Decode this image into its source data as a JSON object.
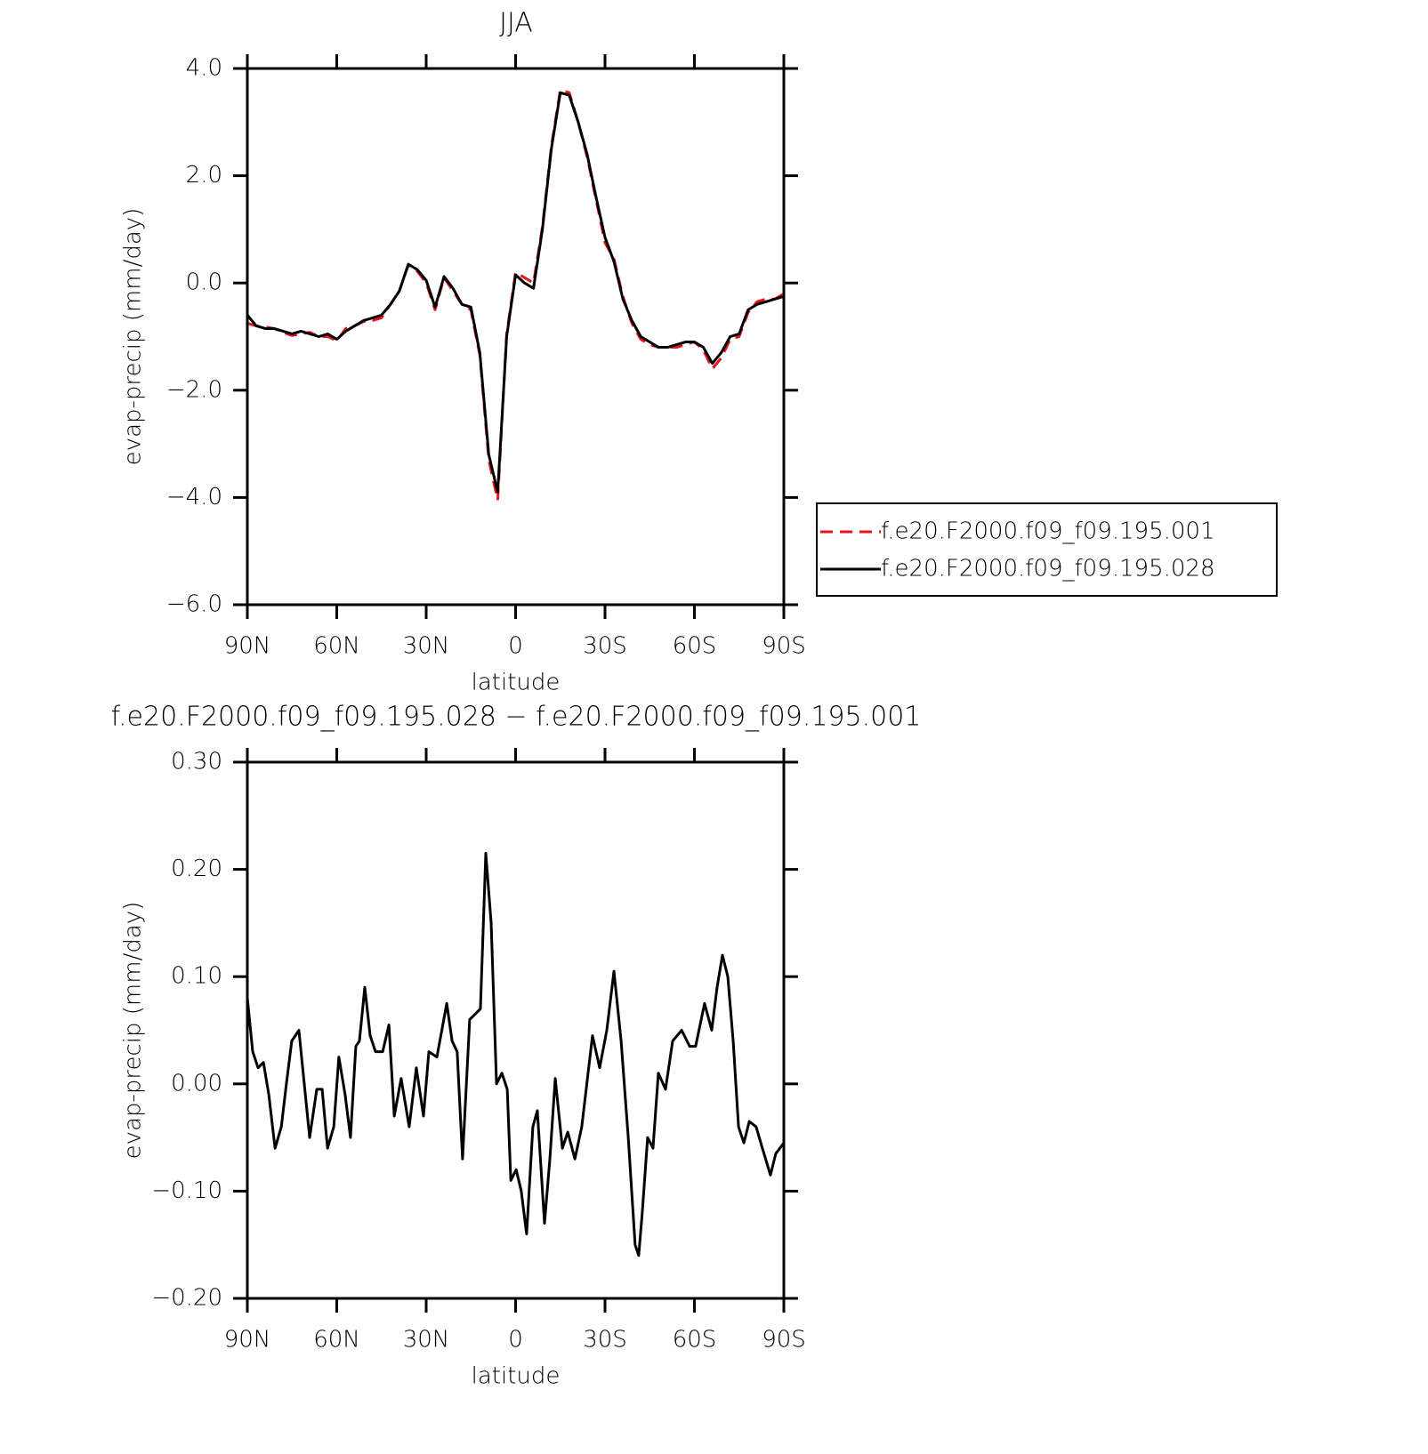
{
  "chart_data": [
    {
      "type": "line",
      "title": "JJA",
      "xlabel": "latitude",
      "ylabel": "evap-precip (mm/day)",
      "x": [
        90,
        87,
        84,
        81,
        78,
        75,
        72,
        69,
        66,
        63,
        60,
        57,
        54,
        51,
        48,
        45,
        42,
        39,
        36,
        33,
        30,
        27,
        24,
        21,
        18,
        15,
        12,
        9,
        6,
        3,
        0,
        -3,
        -6,
        -9,
        -12,
        -15,
        -18,
        -21,
        -24,
        -27,
        -30,
        -33,
        -36,
        -39,
        -42,
        -45,
        -48,
        -51,
        -54,
        -57,
        -60,
        -63,
        -66,
        -69,
        -72,
        -75,
        -78,
        -81,
        -84,
        -87,
        -90
      ],
      "series": [
        {
          "name": "f.e20.F2000.f09_f09.195.001",
          "color": "#e8141a",
          "dashed": true,
          "values": [
            -0.75,
            -0.8,
            -0.82,
            -0.85,
            -0.92,
            -0.98,
            -0.95,
            -0.92,
            -1.0,
            -1.0,
            -1.08,
            -0.85,
            -0.8,
            -0.72,
            -0.7,
            -0.65,
            -0.4,
            -0.15,
            0.33,
            0.22,
            0.0,
            -0.5,
            0.1,
            -0.15,
            -0.4,
            -0.5,
            -1.35,
            -3.3,
            -4.05,
            -0.95,
            0.2,
            0.1,
            0.0,
            1.05,
            2.55,
            3.6,
            3.55,
            3.0,
            2.35,
            1.55,
            0.75,
            0.45,
            -0.25,
            -0.75,
            -1.05,
            -1.15,
            -1.2,
            -1.2,
            -1.2,
            -1.15,
            -1.1,
            -1.25,
            -1.6,
            -1.4,
            -1.05,
            -1.0,
            -0.55,
            -0.35,
            -0.3,
            -0.3,
            -0.2
          ]
        },
        {
          "name": "f.e20.F2000.f09_f09.195.028",
          "color": "#000000",
          "dashed": false,
          "values": [
            -0.6,
            -0.8,
            -0.85,
            -0.85,
            -0.9,
            -0.95,
            -0.9,
            -0.95,
            -1.0,
            -0.95,
            -1.05,
            -0.9,
            -0.8,
            -0.7,
            -0.65,
            -0.6,
            -0.4,
            -0.15,
            0.35,
            0.25,
            0.05,
            -0.45,
            0.12,
            -0.1,
            -0.4,
            -0.45,
            -1.3,
            -3.2,
            -3.9,
            -1.0,
            0.15,
            0.0,
            -0.1,
            1.0,
            2.5,
            3.55,
            3.5,
            3.0,
            2.4,
            1.6,
            0.85,
            0.4,
            -0.3,
            -0.7,
            -1.0,
            -1.1,
            -1.2,
            -1.2,
            -1.15,
            -1.1,
            -1.1,
            -1.2,
            -1.5,
            -1.3,
            -1.0,
            -0.95,
            -0.5,
            -0.4,
            -0.35,
            -0.3,
            -0.25
          ]
        }
      ],
      "xlim": [
        90,
        -90
      ],
      "xticks": [
        {
          "value": 90,
          "label": "90N"
        },
        {
          "value": 60,
          "label": "60N"
        },
        {
          "value": 30,
          "label": "30N"
        },
        0,
        {
          "value": -30,
          "label": "30S"
        },
        {
          "value": -60,
          "label": "60S"
        },
        {
          "value": -90,
          "label": "90S"
        }
      ],
      "ylim": [
        -6,
        4
      ],
      "yticks": [
        {
          "value": -6,
          "label": "−6.0"
        },
        {
          "value": -4,
          "label": "−4.0"
        },
        {
          "value": -2,
          "label": "−2.0"
        },
        {
          "value": 0,
          "label": "0.0"
        },
        {
          "value": 2,
          "label": "2.0"
        },
        {
          "value": 4,
          "label": "4.0"
        }
      ],
      "legend": "right"
    },
    {
      "type": "line",
      "title": "f.e20.F2000.f09_f09.195.028 − f.e20.F2000.f09_f09.195.001",
      "xlabel": "latitude",
      "ylabel": "evap-precip (mm/day)",
      "x": [
        90,
        88.2,
        86.4,
        84.6,
        82.8,
        80.7,
        78.6,
        76.9,
        75.1,
        72.7,
        70.9,
        69.1,
        66.7,
        64.9,
        63.1,
        61.0,
        59.3,
        57.2,
        55.4,
        53.6,
        52.4,
        50.6,
        48.8,
        47.0,
        44.6,
        42.5,
        40.7,
        38.4,
        35.7,
        33.3,
        30.9,
        29.1,
        26.4,
        23.1,
        21.3,
        19.6,
        17.8,
        15.4,
        11.8,
        10.0,
        8.2,
        6.4,
        4.6,
        2.8,
        1.6,
        -0.2,
        -1.9,
        -3.7,
        -5.8,
        -7.3,
        -9.7,
        -11.5,
        -13.3,
        -15.7,
        -17.5,
        -19.9,
        -22.2,
        -25.8,
        -28.2,
        -30.6,
        -33.0,
        -35.4,
        -37.8,
        -40.1,
        -41.3,
        -42.5,
        -44.3,
        -46.1,
        -47.9,
        -50.3,
        -52.7,
        -55.7,
        -58.4,
        -60.4,
        -63.4,
        -65.8,
        -67.6,
        -69.4,
        -71.2,
        -73.0,
        -74.8,
        -76.6,
        -78.4,
        -80.7,
        -82.8,
        -85.5,
        -87.3,
        -90
      ],
      "series": [
        {
          "color": "#000000",
          "dashed": false,
          "values": [
            0.08,
            0.03,
            0.015,
            0.02,
            -0.01,
            -0.06,
            -0.04,
            0.0,
            0.04,
            0.05,
            0.0,
            -0.05,
            -0.005,
            -0.005,
            -0.06,
            -0.04,
            0.025,
            -0.01,
            -0.05,
            0.035,
            0.04,
            0.09,
            0.045,
            0.03,
            0.03,
            0.055,
            -0.03,
            0.005,
            -0.04,
            0.015,
            -0.03,
            0.03,
            0.025,
            0.075,
            0.04,
            0.03,
            -0.07,
            0.06,
            0.07,
            0.215,
            0.15,
            0.0,
            0.01,
            -0.005,
            -0.09,
            -0.08,
            -0.1,
            -0.14,
            -0.04,
            -0.025,
            -0.13,
            -0.07,
            0.005,
            -0.06,
            -0.045,
            -0.07,
            -0.04,
            0.045,
            0.015,
            0.05,
            0.105,
            0.04,
            -0.05,
            -0.15,
            -0.16,
            -0.12,
            -0.05,
            -0.06,
            0.01,
            -0.005,
            0.04,
            0.05,
            0.035,
            0.035,
            0.075,
            0.05,
            0.09,
            0.12,
            0.1,
            0.04,
            -0.04,
            -0.055,
            -0.035,
            -0.04,
            -0.06,
            -0.085,
            -0.065,
            -0.055
          ]
        }
      ],
      "xlim": [
        90,
        -90
      ],
      "xticks": [
        {
          "value": 90,
          "label": "90N"
        },
        {
          "value": 60,
          "label": "60N"
        },
        {
          "value": 30,
          "label": "30N"
        },
        0,
        {
          "value": -30,
          "label": "30S"
        },
        {
          "value": -60,
          "label": "60S"
        },
        {
          "value": -90,
          "label": "90S"
        }
      ],
      "ylim": [
        -0.2,
        0.3
      ],
      "yticks": [
        {
          "value": -0.2,
          "label": "−0.20"
        },
        {
          "value": -0.1,
          "label": "−0.10"
        },
        {
          "value": 0,
          "label": "0.00"
        },
        {
          "value": 0.1,
          "label": "0.10"
        },
        {
          "value": 0.2,
          "label": "0.20"
        },
        {
          "value": 0.3,
          "label": "0.30"
        }
      ]
    }
  ]
}
